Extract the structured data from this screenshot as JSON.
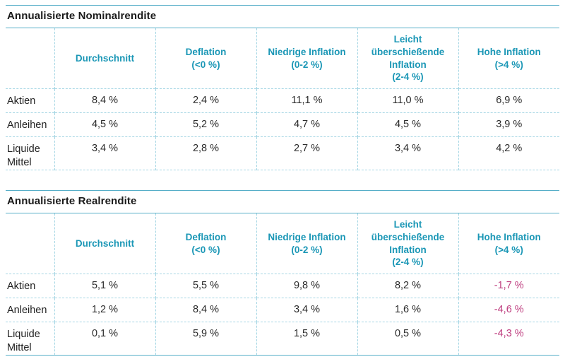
{
  "colors": {
    "accent_teal": "#1B97B6",
    "line_solid": "#56AEC8",
    "line_dashed": "#A5D6E4",
    "negative": "#BE3C7E",
    "text_dark": "#2B2B2B"
  },
  "tables": [
    {
      "title": "Annualisierte Nominalrendite",
      "columns": [
        "Durchschnitt",
        "Deflation\n(<0 %)",
        "Niedrige Inflation\n(0-2 %)",
        "Leicht\nüberschießende\nInflation\n(2-4 %)",
        "Hohe Inflation\n(>4 %)"
      ],
      "rows": [
        {
          "label": "Aktien",
          "values": [
            "8,4 %",
            "2,4 %",
            "11,1 %",
            "11,0 %",
            "6,9 %"
          ]
        },
        {
          "label": "Anleihen",
          "values": [
            "4,5 %",
            "5,2 %",
            "4,7 %",
            "4,5 %",
            "3,9 %"
          ]
        },
        {
          "label": "Liquide Mittel",
          "values": [
            "3,4 %",
            "2,8 %",
            "2,7 %",
            "3,4 %",
            "4,2 %"
          ]
        }
      ]
    },
    {
      "title": "Annualisierte Realrendite",
      "columns": [
        "Durchschnitt",
        "Deflation\n(<0 %)",
        "Niedrige Inflation\n(0-2 %)",
        "Leicht\nüberschießende\nInflation\n(2-4 %)",
        "Hohe Inflation\n(>4 %)"
      ],
      "rows": [
        {
          "label": "Aktien",
          "values": [
            "5,1 %",
            "5,5 %",
            "9,8 %",
            "8,2 %",
            "-1,7 %"
          ]
        },
        {
          "label": "Anleihen",
          "values": [
            "1,2 %",
            "8,4 %",
            "3,4 %",
            "1,6 %",
            "-4,6 %"
          ]
        },
        {
          "label": "Liquide Mittel",
          "values": [
            "0,1 %",
            "5,9 %",
            "1,5 %",
            "0,5 %",
            "-4,3 %"
          ]
        }
      ]
    }
  ]
}
